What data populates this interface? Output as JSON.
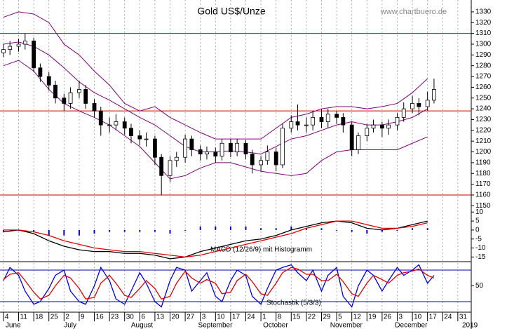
{
  "chart_data": [
    {
      "type": "candlestick",
      "title": "Gold US$/Unze",
      "source": "www.chartbuero.de",
      "xlim": [
        -1.6,
        216.2
      ],
      "ylim": [
        1145,
        1341
      ],
      "yticks": [
        1150,
        1160,
        1170,
        1180,
        1190,
        1200,
        1210,
        1220,
        1230,
        1240,
        1250,
        1260,
        1270,
        1280,
        1290,
        1300,
        1310,
        1320,
        1330
      ],
      "x": [
        0,
        3,
        7,
        10,
        14,
        17,
        21,
        24,
        28,
        31,
        35,
        38,
        42,
        45,
        49,
        52,
        56,
        59,
        63,
        66,
        70,
        73,
        77,
        80,
        84,
        87,
        91,
        94,
        98,
        101,
        105,
        108,
        112,
        115,
        119,
        122,
        126,
        129,
        133,
        136,
        140,
        143,
        147,
        150,
        154,
        157,
        161,
        164,
        168,
        171,
        175,
        178,
        182,
        185,
        189,
        192,
        196,
        199
      ],
      "open": [
        1292,
        1295,
        1298,
        1300,
        1303,
        1278,
        1270,
        1262,
        1250,
        1245,
        1255,
        1258,
        1245,
        1238,
        1225,
        1225,
        1228,
        1222,
        1215,
        1212,
        1212,
        1195,
        1178,
        1192,
        1195,
        1212,
        1202,
        1198,
        1200,
        1196,
        1208,
        1200,
        1208,
        1198,
        1188,
        1192,
        1200,
        1188,
        1222,
        1228,
        1225,
        1225,
        1232,
        1228,
        1235,
        1232,
        1225,
        1202,
        1215,
        1222,
        1225,
        1222,
        1225,
        1232,
        1240,
        1245,
        1242,
        1248
      ],
      "high": [
        1300,
        1303,
        1305,
        1310,
        1306,
        1282,
        1274,
        1266,
        1254,
        1260,
        1266,
        1262,
        1249,
        1242,
        1232,
        1235,
        1232,
        1226,
        1220,
        1218,
        1215,
        1198,
        1196,
        1200,
        1216,
        1215,
        1206,
        1205,
        1204,
        1212,
        1212,
        1212,
        1211,
        1202,
        1196,
        1206,
        1204,
        1226,
        1234,
        1244,
        1232,
        1238,
        1240,
        1240,
        1238,
        1236,
        1228,
        1218,
        1226,
        1230,
        1228,
        1230,
        1236,
        1246,
        1252,
        1250,
        1256,
        1268
      ],
      "low": [
        1288,
        1290,
        1293,
        1295,
        1274,
        1265,
        1257,
        1245,
        1238,
        1240,
        1250,
        1240,
        1232,
        1215,
        1218,
        1220,
        1216,
        1208,
        1206,
        1205,
        1188,
        1160,
        1172,
        1186,
        1190,
        1196,
        1192,
        1193,
        1190,
        1192,
        1195,
        1196,
        1193,
        1180,
        1182,
        1188,
        1182,
        1185,
        1218,
        1220,
        1218,
        1220,
        1222,
        1222,
        1226,
        1218,
        1196,
        1198,
        1210,
        1218,
        1214,
        1216,
        1220,
        1228,
        1236,
        1234,
        1238,
        1245
      ],
      "close": [
        1295,
        1298,
        1300,
        1303,
        1278,
        1270,
        1262,
        1250,
        1245,
        1255,
        1258,
        1245,
        1238,
        1225,
        1225,
        1228,
        1222,
        1215,
        1212,
        1212,
        1195,
        1178,
        1192,
        1195,
        1212,
        1202,
        1198,
        1200,
        1196,
        1208,
        1200,
        1208,
        1198,
        1188,
        1192,
        1200,
        1188,
        1222,
        1228,
        1225,
        1225,
        1232,
        1228,
        1235,
        1232,
        1225,
        1202,
        1215,
        1222,
        1225,
        1222,
        1225,
        1232,
        1240,
        1245,
        1242,
        1248,
        1258
      ],
      "up_color": "#ffffff",
      "down_color": "#000000",
      "bands": {
        "color": "#800080",
        "x": [
          0,
          7,
          14,
          21,
          28,
          35,
          42,
          49,
          56,
          63,
          70,
          77,
          84,
          91,
          98,
          105,
          112,
          119,
          126,
          133,
          140,
          147,
          154,
          161,
          168,
          175,
          182,
          189,
          196
        ],
        "upper": [
          1325,
          1330,
          1328,
          1320,
          1300,
          1290,
          1275,
          1262,
          1245,
          1238,
          1242,
          1232,
          1225,
          1218,
          1212,
          1212,
          1212,
          1212,
          1222,
          1232,
          1235,
          1240,
          1242,
          1242,
          1240,
          1242,
          1245,
          1255,
          1268
        ],
        "middle": [
          1300,
          1302,
          1298,
          1290,
          1278,
          1265,
          1255,
          1248,
          1240,
          1232,
          1225,
          1215,
          1205,
          1200,
          1200,
          1201,
          1200,
          1198,
          1205,
          1212,
          1215,
          1220,
          1225,
          1228,
          1225,
          1225,
          1228,
          1232,
          1240
        ],
        "lower": [
          1280,
          1285,
          1275,
          1258,
          1245,
          1238,
          1232,
          1225,
          1215,
          1205,
          1190,
          1175,
          1178,
          1185,
          1190,
          1190,
          1186,
          1182,
          1180,
          1178,
          1180,
          1192,
          1200,
          1202,
          1202,
          1202,
          1202,
          1208,
          1214
        ]
      },
      "hlines": [
        1310,
        1238,
        1160
      ],
      "hline_color": "#cc0000"
    },
    {
      "type": "line",
      "label": "MACD (12/26/9) mit Histogramm",
      "xlim": [
        -1.6,
        216.2
      ],
      "ylim": [
        -17.6,
        10.5
      ],
      "yticks": [
        10,
        5,
        0,
        -5,
        -10,
        -15
      ],
      "x": [
        0,
        7,
        14,
        21,
        28,
        35,
        42,
        49,
        56,
        63,
        70,
        77,
        84,
        91,
        98,
        105,
        112,
        119,
        126,
        133,
        140,
        147,
        154,
        161,
        168,
        175,
        182,
        189,
        196
      ],
      "series": [
        {
          "color": "#000000",
          "values": [
            -1,
            0,
            -2,
            -6,
            -9,
            -11,
            -12,
            -12,
            -13,
            -13,
            -14,
            -16,
            -15,
            -12,
            -10,
            -8,
            -6,
            -5,
            -3,
            0,
            2,
            4,
            5,
            4,
            1,
            0,
            1,
            3,
            5
          ]
        },
        {
          "color": "#dd0000",
          "values": [
            0,
            0,
            -1,
            -3,
            -6,
            -8,
            -10,
            -11,
            -12,
            -12,
            -13,
            -14,
            -15,
            -14,
            -12,
            -10,
            -8,
            -6,
            -4,
            -2,
            1,
            3,
            5,
            5,
            3,
            1,
            1,
            2,
            4
          ]
        }
      ],
      "histogram": {
        "color": "#0000cc",
        "values": [
          -1,
          0,
          -1,
          -3,
          -3,
          -3,
          -2,
          -1,
          -1,
          -1,
          -1,
          -2,
          0,
          2,
          2,
          2,
          2,
          1,
          1,
          2,
          1,
          1,
          0,
          -1,
          -2,
          -1,
          0,
          1,
          1
        ]
      }
    },
    {
      "type": "line",
      "label": "Stochastik (5/3/3)",
      "xlim": [
        -1.6,
        216.2
      ],
      "ylim": [
        0,
        96
      ],
      "yticks": [
        50
      ],
      "x": [
        0,
        3,
        7,
        10,
        14,
        17,
        21,
        24,
        28,
        31,
        35,
        38,
        42,
        45,
        49,
        52,
        56,
        59,
        63,
        66,
        70,
        73,
        77,
        80,
        84,
        87,
        91,
        94,
        98,
        101,
        105,
        108,
        112,
        115,
        119,
        122,
        126,
        129,
        133,
        136,
        140,
        143,
        147,
        150,
        154,
        157,
        161,
        164,
        168,
        171,
        175,
        178,
        182,
        185,
        189,
        192,
        196,
        199
      ],
      "series": [
        {
          "color": "#0000dd",
          "values": [
            60,
            85,
            70,
            40,
            15,
            20,
            45,
            70,
            80,
            40,
            20,
            15,
            50,
            85,
            60,
            25,
            15,
            40,
            75,
            55,
            20,
            10,
            60,
            85,
            80,
            40,
            60,
            75,
            30,
            20,
            60,
            80,
            70,
            30,
            15,
            45,
            80,
            85,
            90,
            75,
            60,
            80,
            40,
            70,
            85,
            30,
            10,
            50,
            80,
            70,
            40,
            60,
            85,
            70,
            80,
            90,
            55,
            70
          ]
        },
        {
          "color": "#dd0000",
          "values": [
            62,
            72,
            75,
            60,
            38,
            25,
            32,
            50,
            70,
            65,
            45,
            25,
            28,
            55,
            70,
            55,
            32,
            28,
            45,
            60,
            45,
            25,
            30,
            55,
            78,
            65,
            55,
            62,
            55,
            35,
            38,
            60,
            72,
            58,
            35,
            32,
            55,
            75,
            85,
            82,
            72,
            72,
            60,
            60,
            72,
            58,
            35,
            30,
            55,
            70,
            62,
            55,
            70,
            75,
            78,
            82,
            70,
            65
          ]
        }
      ],
      "hlines": [
        20,
        80
      ],
      "hline_color": "#0000aa",
      "xticks": [
        {
          "value": 0,
          "label": "4"
        },
        {
          "value": 7,
          "label": "11"
        },
        {
          "value": 14,
          "label": "18"
        },
        {
          "value": 21,
          "label": "25"
        },
        {
          "value": 28,
          "label": "2"
        },
        {
          "value": 35,
          "label": "9"
        },
        {
          "value": 42,
          "label": "16"
        },
        {
          "value": 49,
          "label": "23"
        },
        {
          "value": 56,
          "label": "30"
        },
        {
          "value": 63,
          "label": "6"
        },
        {
          "value": 70,
          "label": "13"
        },
        {
          "value": 77,
          "label": "20"
        },
        {
          "value": 84,
          "label": "27"
        },
        {
          "value": 91,
          "label": "3"
        },
        {
          "value": 98,
          "label": "10"
        },
        {
          "value": 105,
          "label": "17"
        },
        {
          "value": 112,
          "label": "24"
        },
        {
          "value": 119,
          "label": "1"
        },
        {
          "value": 126,
          "label": "8"
        },
        {
          "value": 133,
          "label": "15"
        },
        {
          "value": 140,
          "label": "22"
        },
        {
          "value": 147,
          "label": "29"
        },
        {
          "value": 154,
          "label": "5"
        },
        {
          "value": 161,
          "label": "12"
        },
        {
          "value": 168,
          "label": "19"
        },
        {
          "value": 175,
          "label": "26"
        },
        {
          "value": 182,
          "label": "3"
        },
        {
          "value": 189,
          "label": "10"
        },
        {
          "value": 196,
          "label": "17"
        },
        {
          "value": 203,
          "label": "24"
        },
        {
          "value": 210,
          "label": "31"
        }
      ],
      "months": [
        {
          "value": 0,
          "label": "June"
        },
        {
          "value": 27,
          "label": "July"
        },
        {
          "value": 58,
          "label": "August"
        },
        {
          "value": 89,
          "label": "September"
        },
        {
          "value": 119,
          "label": "October"
        },
        {
          "value": 150,
          "label": "November"
        },
        {
          "value": 180,
          "label": "December"
        },
        {
          "value": 211,
          "label": "2019"
        }
      ]
    }
  ]
}
